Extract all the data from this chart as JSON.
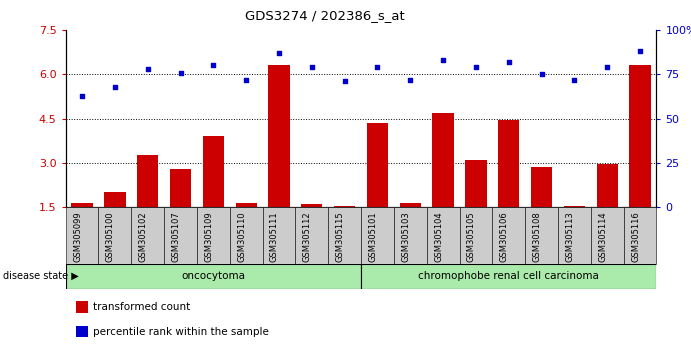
{
  "title": "GDS3274 / 202386_s_at",
  "samples": [
    "GSM305099",
    "GSM305100",
    "GSM305102",
    "GSM305107",
    "GSM305109",
    "GSM305110",
    "GSM305111",
    "GSM305112",
    "GSM305115",
    "GSM305101",
    "GSM305103",
    "GSM305104",
    "GSM305105",
    "GSM305106",
    "GSM305108",
    "GSM305113",
    "GSM305114",
    "GSM305116"
  ],
  "bar_values": [
    1.65,
    2.0,
    3.25,
    2.8,
    3.9,
    1.65,
    6.3,
    1.6,
    1.55,
    4.35,
    1.65,
    4.7,
    3.1,
    4.45,
    2.85,
    1.55,
    2.95,
    6.3
  ],
  "dot_values": [
    63,
    68,
    78,
    76,
    80,
    72,
    87,
    79,
    71,
    79,
    72,
    83,
    79,
    82,
    75,
    72,
    79,
    88
  ],
  "ylim_left": [
    1.5,
    7.5
  ],
  "ylim_right": [
    0,
    100
  ],
  "yticks_left": [
    1.5,
    3.0,
    4.5,
    6.0,
    7.5
  ],
  "yticks_right": [
    0,
    25,
    50,
    75,
    100
  ],
  "bar_color": "#cc0000",
  "dot_color": "#0000cc",
  "oncocytoma_count": 9,
  "chromophobe_count": 9,
  "group1_label": "oncocytoma",
  "group2_label": "chromophobe renal cell carcinoma",
  "group_bg_color": "#aaeaaa",
  "disease_state_label": "disease state",
  "legend_bar_label": "transformed count",
  "legend_dot_label": "percentile rank within the sample",
  "tick_label_color_left": "#cc0000",
  "tick_label_color_right": "#0000cc",
  "xlabel_bg_color": "#cccccc"
}
